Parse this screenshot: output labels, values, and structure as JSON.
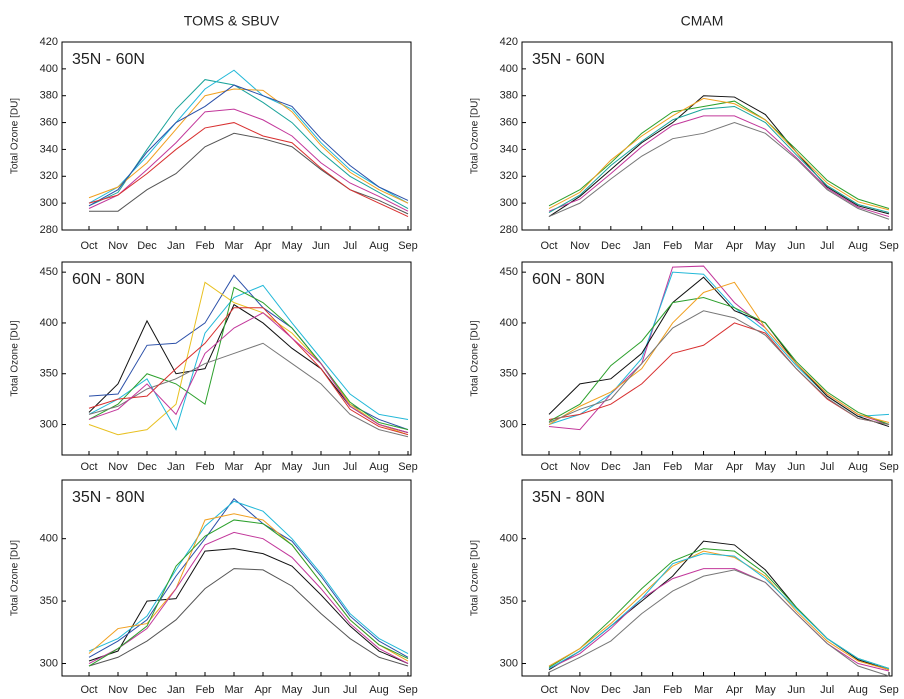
{
  "chart_data": [
    {
      "type": "line",
      "title": "TOMS & SBUV",
      "annotation": "35N - 60N",
      "y_label": "Total Ozone [DU]",
      "categories": [
        "Oct",
        "Nov",
        "Dec",
        "Jan",
        "Feb",
        "Mar",
        "Apr",
        "May",
        "Jun",
        "Jul",
        "Aug",
        "Sep"
      ],
      "ylim": [
        280,
        420
      ],
      "yticks": [
        280,
        300,
        320,
        340,
        360,
        380,
        400,
        420
      ],
      "series": [
        {
          "color": "#1aa39a",
          "values": [
            298,
            308,
            340,
            370,
            392,
            388,
            375,
            360,
            338,
            320,
            308,
            296
          ]
        },
        {
          "color": "#22b8d8",
          "values": [
            300,
            312,
            335,
            360,
            385,
            399,
            380,
            370,
            345,
            325,
            312,
            300
          ]
        },
        {
          "color": "#555555",
          "values": [
            294,
            294,
            310,
            322,
            342,
            352,
            348,
            342,
            325,
            310,
            302,
            292
          ]
        },
        {
          "color": "#c2379b",
          "values": [
            296,
            306,
            325,
            345,
            368,
            370,
            362,
            350,
            330,
            315,
            305,
            294
          ]
        },
        {
          "color": "#f0a020",
          "values": [
            304,
            312,
            330,
            355,
            380,
            385,
            384,
            368,
            343,
            323,
            310,
            300
          ]
        },
        {
          "color": "#2a4fa8",
          "values": [
            298,
            310,
            338,
            360,
            372,
            388,
            380,
            372,
            348,
            328,
            312,
            302
          ]
        },
        {
          "color": "#d83030",
          "values": [
            300,
            306,
            322,
            340,
            356,
            360,
            350,
            345,
            326,
            310,
            300,
            290
          ]
        }
      ]
    },
    {
      "type": "line",
      "title": "CMAM",
      "annotation": "35N - 60N",
      "y_label": "Total Ozone [DU]",
      "categories": [
        "Oct",
        "Nov",
        "Dec",
        "Jan",
        "Feb",
        "Mar",
        "Apr",
        "May",
        "Jun",
        "Jul",
        "Aug",
        "Sep"
      ],
      "ylim": [
        280,
        420
      ],
      "yticks": [
        280,
        300,
        320,
        340,
        360,
        380,
        400,
        420
      ],
      "series": [
        {
          "color": "#111111",
          "values": [
            290,
            305,
            325,
            345,
            360,
            380,
            379,
            366,
            338,
            312,
            298,
            292
          ]
        },
        {
          "color": "#2ca02c",
          "values": [
            298,
            310,
            330,
            352,
            368,
            372,
            376,
            362,
            340,
            317,
            303,
            296
          ]
        },
        {
          "color": "#c2379b",
          "values": [
            294,
            303,
            322,
            342,
            358,
            365,
            365,
            355,
            334,
            311,
            297,
            290
          ]
        },
        {
          "color": "#777777",
          "values": [
            290,
            300,
            318,
            335,
            348,
            352,
            360,
            352,
            333,
            310,
            296,
            288
          ]
        },
        {
          "color": "#f0a020",
          "values": [
            296,
            308,
            332,
            350,
            365,
            378,
            374,
            362,
            338,
            315,
            301,
            295
          ]
        },
        {
          "color": "#1aa39a",
          "values": [
            293,
            306,
            328,
            346,
            362,
            370,
            372,
            360,
            336,
            313,
            299,
            293
          ]
        }
      ]
    },
    {
      "type": "line",
      "annotation": "60N - 80N",
      "y_label": "Total Ozone [DU]",
      "categories": [
        "Oct",
        "Nov",
        "Dec",
        "Jan",
        "Feb",
        "Mar",
        "Apr",
        "May",
        "Jun",
        "Jul",
        "Aug",
        "Sep"
      ],
      "ylim": [
        270,
        460
      ],
      "yticks": [
        300,
        350,
        400,
        450
      ],
      "series": [
        {
          "color": "#111111",
          "values": [
            312,
            340,
            402,
            350,
            355,
            418,
            400,
            375,
            355,
            318,
            300,
            292
          ]
        },
        {
          "color": "#2a4fa8",
          "values": [
            328,
            330,
            378,
            380,
            400,
            447,
            415,
            395,
            360,
            320,
            305,
            295
          ]
        },
        {
          "color": "#e8c020",
          "values": [
            300,
            290,
            295,
            320,
            440,
            420,
            410,
            390,
            360,
            320,
            300,
            290
          ]
        },
        {
          "color": "#22b8d8",
          "values": [
            310,
            325,
            345,
            295,
            390,
            425,
            437,
            400,
            365,
            330,
            310,
            305
          ]
        },
        {
          "color": "#2ca02c",
          "values": [
            305,
            320,
            350,
            340,
            320,
            435,
            420,
            395,
            360,
            322,
            302,
            295
          ]
        },
        {
          "color": "#777777",
          "values": [
            310,
            318,
            335,
            345,
            360,
            370,
            380,
            360,
            340,
            310,
            295,
            288
          ]
        },
        {
          "color": "#d83030",
          "values": [
            316,
            325,
            328,
            355,
            380,
            415,
            415,
            385,
            355,
            315,
            298,
            290
          ]
        },
        {
          "color": "#c2379b",
          "values": [
            305,
            315,
            340,
            310,
            370,
            395,
            410,
            385,
            360,
            318,
            300,
            292
          ]
        }
      ]
    },
    {
      "type": "line",
      "annotation": "60N - 80N",
      "y_label": "Total Ozone [DU]",
      "categories": [
        "Oct",
        "Nov",
        "Dec",
        "Jan",
        "Feb",
        "Mar",
        "Apr",
        "May",
        "Jun",
        "Jul",
        "Aug",
        "Sep"
      ],
      "ylim": [
        270,
        460
      ],
      "yticks": [
        300,
        350,
        400,
        450
      ],
      "series": [
        {
          "color": "#c2379b",
          "values": [
            298,
            295,
            330,
            360,
            455,
            456,
            420,
            395,
            360,
            330,
            310,
            300
          ]
        },
        {
          "color": "#22b8d8",
          "values": [
            300,
            310,
            330,
            365,
            450,
            448,
            415,
            392,
            358,
            328,
            308,
            310
          ]
        },
        {
          "color": "#111111",
          "values": [
            310,
            340,
            345,
            370,
            420,
            445,
            412,
            400,
            360,
            328,
            308,
            298
          ]
        },
        {
          "color": "#d83030",
          "values": [
            305,
            310,
            320,
            340,
            370,
            378,
            400,
            390,
            355,
            325,
            306,
            300
          ]
        },
        {
          "color": "#2ca02c",
          "values": [
            303,
            320,
            358,
            382,
            420,
            425,
            415,
            400,
            362,
            332,
            312,
            300
          ]
        },
        {
          "color": "#f0a020",
          "values": [
            300,
            318,
            332,
            355,
            400,
            430,
            440,
            395,
            360,
            330,
            310,
            302
          ]
        },
        {
          "color": "#777777",
          "values": [
            302,
            315,
            325,
            360,
            395,
            412,
            405,
            388,
            355,
            326,
            306,
            300
          ]
        }
      ]
    },
    {
      "type": "line",
      "annotation": "35N - 80N",
      "y_label": "Total Ozone [DU]",
      "categories": [
        "Oct",
        "Nov",
        "Dec",
        "Jan",
        "Feb",
        "Mar",
        "Apr",
        "May",
        "Jun",
        "Jul",
        "Aug",
        "Sep"
      ],
      "ylim": [
        290,
        447
      ],
      "yticks": [
        300,
        350,
        400
      ],
      "series": [
        {
          "color": "#111111",
          "values": [
            302,
            310,
            350,
            352,
            390,
            392,
            388,
            378,
            355,
            330,
            310,
            300
          ]
        },
        {
          "color": "#2a4fa8",
          "values": [
            305,
            318,
            335,
            370,
            400,
            432,
            412,
            398,
            370,
            338,
            318,
            305
          ]
        },
        {
          "color": "#22b8d8",
          "values": [
            310,
            320,
            338,
            375,
            410,
            430,
            422,
            400,
            372,
            340,
            320,
            308
          ]
        },
        {
          "color": "#555555",
          "values": [
            298,
            305,
            318,
            335,
            360,
            376,
            375,
            362,
            340,
            320,
            305,
            298
          ]
        },
        {
          "color": "#f0a020",
          "values": [
            308,
            328,
            332,
            360,
            415,
            420,
            415,
            395,
            365,
            335,
            315,
            302
          ]
        },
        {
          "color": "#c2379b",
          "values": [
            300,
            312,
            328,
            360,
            395,
            405,
            400,
            385,
            360,
            332,
            312,
            300
          ]
        },
        {
          "color": "#2ca02c",
          "values": [
            298,
            312,
            330,
            378,
            402,
            415,
            412,
            395,
            365,
            335,
            315,
            304
          ]
        }
      ]
    },
    {
      "type": "line",
      "annotation": "35N - 80N",
      "y_label": "Total Ozone [DU]",
      "categories": [
        "Oct",
        "Nov",
        "Dec",
        "Jan",
        "Feb",
        "Mar",
        "Apr",
        "May",
        "Jun",
        "Jul",
        "Aug",
        "Sep"
      ],
      "ylim": [
        290,
        447
      ],
      "yticks": [
        300,
        350,
        400
      ],
      "series": [
        {
          "color": "#111111",
          "values": [
            295,
            310,
            330,
            350,
            370,
            398,
            395,
            375,
            345,
            320,
            303,
            295
          ]
        },
        {
          "color": "#2ca02c",
          "values": [
            297,
            312,
            335,
            360,
            382,
            392,
            390,
            372,
            345,
            320,
            304,
            296
          ]
        },
        {
          "color": "#c2379b",
          "values": [
            296,
            308,
            328,
            352,
            368,
            376,
            376,
            365,
            340,
            316,
            300,
            294
          ]
        },
        {
          "color": "#777777",
          "values": [
            293,
            305,
            318,
            340,
            358,
            370,
            375,
            365,
            340,
            316,
            298,
            290
          ]
        },
        {
          "color": "#f0a020",
          "values": [
            298,
            312,
            332,
            355,
            378,
            390,
            385,
            370,
            342,
            318,
            302,
            295
          ]
        },
        {
          "color": "#22b8d8",
          "values": [
            296,
            310,
            330,
            352,
            380,
            388,
            386,
            368,
            344,
            320,
            304,
            296
          ]
        }
      ]
    }
  ]
}
